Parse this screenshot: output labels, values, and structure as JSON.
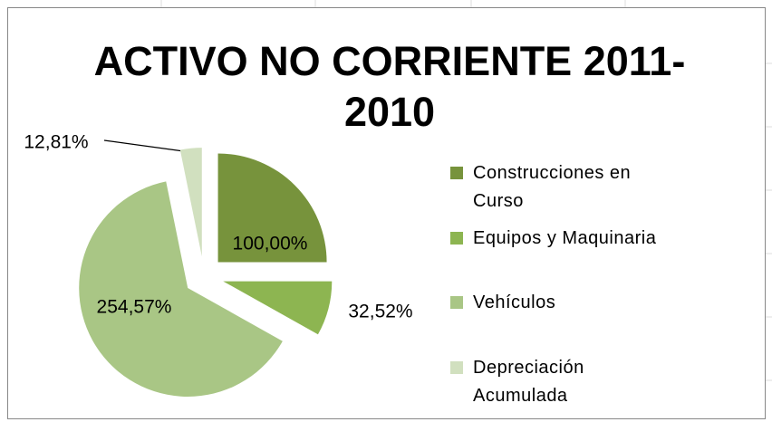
{
  "chart_data": {
    "type": "pie",
    "title": "ACTIVO NO CORRIENTE 2011-2010",
    "categories": [
      "Construcciones en Curso",
      "Equipos y Maquinaria",
      "Vehículos",
      "Depreciación Acumulada"
    ],
    "values": [
      100,
      32.52,
      254.57,
      12.81
    ],
    "value_labels": [
      "100,00%",
      "32,52%",
      "254,57%",
      "12,81%"
    ],
    "colors": [
      "#77933c",
      "#8db551",
      "#a9c685",
      "#d1e0bf"
    ],
    "legend": "right"
  }
}
